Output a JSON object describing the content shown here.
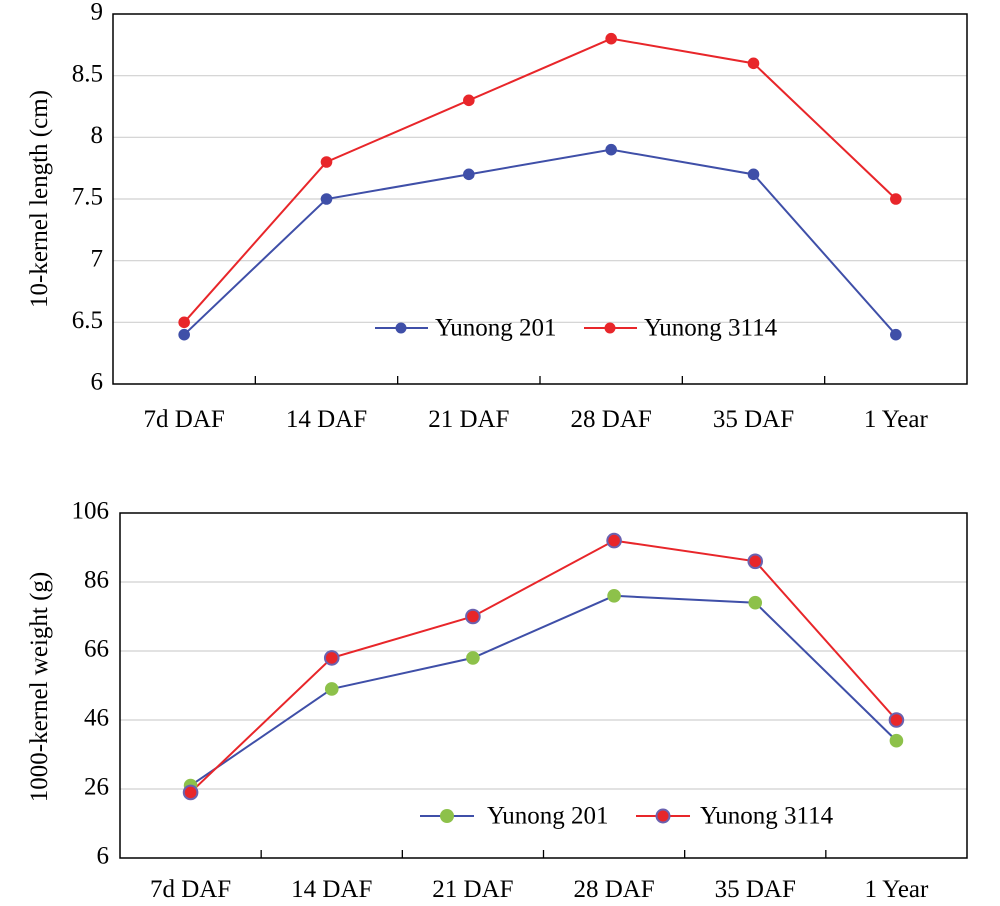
{
  "chart_data": [
    {
      "type": "line",
      "title": "",
      "xlabel": "",
      "ylabel": "10-kernel length (cm)",
      "categories": [
        "7d DAF",
        "14 DAF",
        "21 DAF",
        "28 DAF",
        "35 DAF",
        "1 Year"
      ],
      "ylim": [
        6,
        9
      ],
      "yticks": [
        6,
        6.5,
        7,
        7.5,
        8,
        8.5,
        9
      ],
      "ytick_labels": [
        "6",
        "6.5",
        "7",
        "7.5",
        "8",
        "8.5",
        "9"
      ],
      "grid": true,
      "legend_position": "bottom-center",
      "series": [
        {
          "name": "Yunong 201",
          "values": [
            6.4,
            7.5,
            7.7,
            7.9,
            7.7,
            6.4
          ],
          "color": "#3F4FA8",
          "marker_color": "#3F4FA8",
          "marker_edge": "#3F4FA8"
        },
        {
          "name": "Yunong 3114",
          "values": [
            6.5,
            7.8,
            8.3,
            8.8,
            8.6,
            7.5
          ],
          "color": "#E8262A",
          "marker_color": "#E8262A",
          "marker_edge": "#E8262A"
        }
      ]
    },
    {
      "type": "line",
      "title": "",
      "xlabel": "",
      "ylabel": "1000-kernel weight (g)",
      "categories": [
        "7d DAF",
        "14 DAF",
        "21 DAF",
        "28 DAF",
        "35 DAF",
        "1 Year"
      ],
      "ylim": [
        6,
        106
      ],
      "yticks": [
        6,
        26,
        46,
        66,
        86,
        106
      ],
      "ytick_labels": [
        "6",
        "26",
        "46",
        "66",
        "86",
        "106"
      ],
      "grid": true,
      "legend_position": "bottom-center",
      "series": [
        {
          "name": "Yunong 201",
          "values": [
            27,
            55,
            64,
            82,
            80,
            40
          ],
          "color": "#3F4FA8",
          "marker_color": "#8DC14A",
          "marker_edge": "#8DC14A"
        },
        {
          "name": "Yunong 3114",
          "values": [
            25,
            64,
            76,
            98,
            92,
            46
          ],
          "color": "#E8262A",
          "marker_color": "#E8262A",
          "marker_edge": "#6A62B0"
        }
      ]
    }
  ]
}
